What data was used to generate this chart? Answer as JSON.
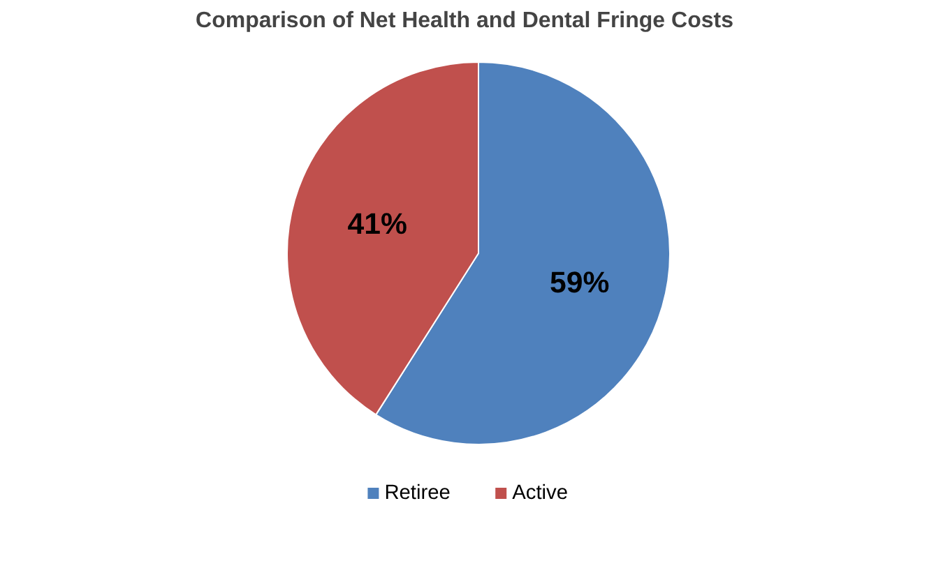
{
  "chart_data": {
    "type": "pie",
    "title": "Comparison of Net Health and Dental Fringe Costs",
    "categories": [
      "Retiree",
      "Active"
    ],
    "values": [
      59,
      41
    ],
    "colors": [
      "#4f81bd",
      "#c0504d"
    ],
    "value_labels": [
      "59%",
      "41%"
    ],
    "legend": "bottom"
  }
}
